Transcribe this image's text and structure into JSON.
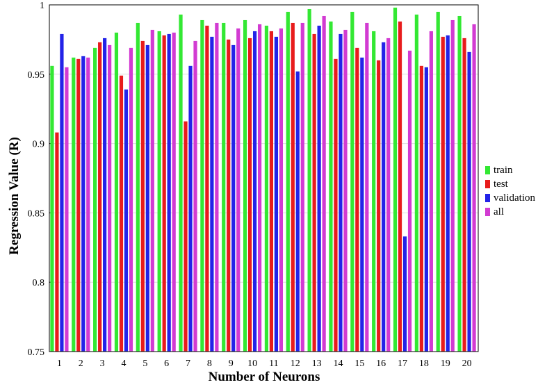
{
  "chart_data": {
    "type": "bar",
    "title": "",
    "xlabel": "Number of Neurons",
    "ylabel": "Regression Value (R)",
    "ylim": [
      0.75,
      1.0
    ],
    "yticks": [
      "0.75",
      "0.8",
      "0.85",
      "0.9",
      "0.95",
      "1"
    ],
    "grid": "horizontal",
    "legend_position": "right",
    "categories": [
      "1",
      "2",
      "3",
      "4",
      "5",
      "6",
      "7",
      "8",
      "9",
      "10",
      "11",
      "12",
      "13",
      "14",
      "15",
      "16",
      "17",
      "18",
      "19",
      "20"
    ],
    "series": [
      {
        "name": "train",
        "color": "#33e833",
        "values": [
          0.956,
          0.962,
          0.969,
          0.98,
          0.987,
          0.981,
          0.993,
          0.989,
          0.987,
          0.989,
          0.985,
          0.995,
          0.997,
          0.988,
          0.995,
          0.981,
          0.998,
          0.993,
          0.995,
          0.992
        ]
      },
      {
        "name": "test",
        "color": "#e81c1c",
        "values": [
          0.908,
          0.961,
          0.973,
          0.949,
          0.974,
          0.978,
          0.916,
          0.985,
          0.975,
          0.976,
          0.981,
          0.987,
          0.979,
          0.961,
          0.969,
          0.96,
          0.988,
          0.956,
          0.977,
          0.976
        ]
      },
      {
        "name": "validation",
        "color": "#2323e8",
        "values": [
          0.979,
          0.963,
          0.976,
          0.939,
          0.971,
          0.979,
          0.956,
          0.977,
          0.971,
          0.981,
          0.977,
          0.952,
          0.985,
          0.979,
          0.962,
          0.973,
          0.833,
          0.955,
          0.978,
          0.966
        ]
      },
      {
        "name": "all",
        "color": "#d23bd2",
        "values": [
          0.955,
          0.962,
          0.971,
          0.969,
          0.982,
          0.98,
          0.974,
          0.987,
          0.983,
          0.986,
          0.983,
          0.987,
          0.992,
          0.982,
          0.987,
          0.976,
          0.967,
          0.981,
          0.989,
          0.986
        ]
      }
    ]
  }
}
